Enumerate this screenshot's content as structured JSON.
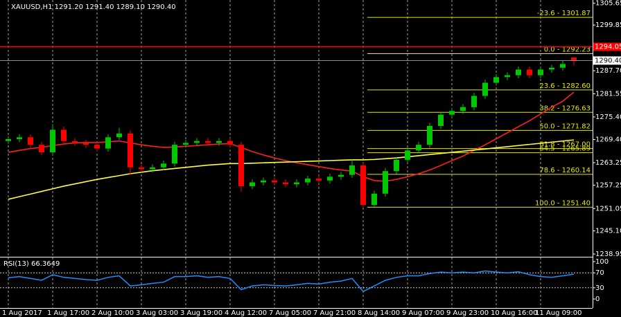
{
  "chart_data": {
    "type": "candlestick",
    "title": "XAUUSD,H1  1291.20 1291.40 1289.10 1290.40",
    "up_color": "#00c800",
    "down_color": "#ff0000",
    "categories": [
      "1 Aug 2017",
      null,
      null,
      null,
      "1 Aug 17:00",
      null,
      null,
      null,
      "2 Aug 10:00",
      null,
      null,
      null,
      "3 Aug 03:00",
      null,
      null,
      null,
      "3 Aug 19:00",
      null,
      null,
      null,
      "4 Aug 12:00",
      null,
      null,
      null,
      "7 Aug 05:00",
      null,
      null,
      null,
      "7 Aug 21:00",
      null,
      null,
      null,
      "8 Aug 14:00",
      null,
      null,
      null,
      "9 Aug 07:00",
      null,
      null,
      null,
      "9 Aug 23:00",
      null,
      null,
      null,
      "10 Aug 16:00",
      null,
      null,
      null,
      "11 Aug 09:00",
      null,
      null,
      null
    ],
    "open": [
      1269,
      1269.5,
      1270,
      1268,
      1266,
      1272,
      1269,
      1268.5,
      1268,
      1267,
      1270,
      1271,
      1262,
      1261.5,
      1262,
      1263,
      1268,
      1268.5,
      1269,
      1268.5,
      1269,
      1268,
      1257,
      1258,
      1258.5,
      1258,
      1257.5,
      1258,
      1259,
      1258.5,
      1259.5,
      1260,
      1262.5,
      1252,
      1255,
      1261,
      1264,
      1266.5,
      1268,
      1273,
      1276,
      1277,
      1278,
      1281,
      1284.5,
      1286,
      1286.5,
      1288,
      1286.5,
      1288,
      1288.5,
      1291.2
    ],
    "high": [
      1270.3,
      1270.8,
      1270.8,
      1268.8,
      1273.5,
      1272.8,
      1269.8,
      1269.3,
      1268.8,
      1270.8,
      1272.5,
      1271.8,
      1262.8,
      1262.8,
      1263.8,
      1268.8,
      1269.3,
      1269.8,
      1269.8,
      1269.8,
      1269.8,
      1268.8,
      1258.8,
      1259.3,
      1259.3,
      1258.8,
      1258.8,
      1259.8,
      1259.8,
      1260.3,
      1260.8,
      1264,
      1263.3,
      1255.8,
      1261.8,
      1264.8,
      1267.3,
      1268.8,
      1273.8,
      1276.8,
      1277.8,
      1278.8,
      1281.8,
      1285.3,
      1286.8,
      1287.3,
      1288.8,
      1288.8,
      1288.8,
      1289.3,
      1290.3,
      1291.4
    ],
    "low": [
      1268.2,
      1268.7,
      1267.2,
      1265.2,
      1265.2,
      1268.2,
      1267.7,
      1267.2,
      1266.2,
      1266.2,
      1269.2,
      1260,
      1260.7,
      1260.7,
      1261.2,
      1262.2,
      1267.2,
      1267.7,
      1267.7,
      1267.7,
      1267.2,
      1255.5,
      1256.2,
      1257.2,
      1257.2,
      1256.7,
      1256.7,
      1257.2,
      1257.7,
      1257.7,
      1258.7,
      1259.2,
      1251.4,
      1251.2,
      1254.2,
      1260.2,
      1263.2,
      1265.7,
      1267.2,
      1272.2,
      1275.2,
      1276.2,
      1277.2,
      1280.2,
      1283.7,
      1285.2,
      1285.7,
      1285.7,
      1285.7,
      1287.2,
      1287.7,
      1289.1
    ],
    "close": [
      1269.5,
      1270,
      1268,
      1266,
      1272,
      1269,
      1268.5,
      1268,
      1267,
      1270,
      1271,
      1262,
      1261.5,
      1262,
      1263,
      1268,
      1268.5,
      1269,
      1268.5,
      1269,
      1268,
      1257,
      1258,
      1258.5,
      1258,
      1257.5,
      1258,
      1259,
      1258.5,
      1259.5,
      1260,
      1262.5,
      1252,
      1255,
      1261,
      1264,
      1266.5,
      1268,
      1273,
      1276,
      1277,
      1278,
      1281,
      1284.5,
      1286,
      1286.5,
      1288,
      1286.5,
      1288,
      1288.5,
      1289.5,
      1290.4
    ],
    "series": [
      {
        "color": "#ff2020",
        "values": [
          1266,
          1266.5,
          1267,
          1267.3,
          1267.8,
          1268.2,
          1268.5,
          1268.6,
          1268.6,
          1268.8,
          1269,
          1268.5,
          1268,
          1267.6,
          1267.3,
          1267.4,
          1267.6,
          1267.8,
          1268,
          1268.2,
          1268.3,
          1267.3,
          1266.2,
          1265.3,
          1264.5,
          1263.8,
          1263.2,
          1262.7,
          1262.2,
          1261.7,
          1261.3,
          1261,
          1259.5,
          1258.5,
          1258.3,
          1258.8,
          1259.5,
          1260.3,
          1261.3,
          1262.5,
          1263.8,
          1265,
          1266.5,
          1268,
          1269.6,
          1271.2,
          1272.8,
          1274.4,
          1276.2,
          1278,
          1279.6,
          1282
        ]
      },
      {
        "color": "#ffff40",
        "values": [
          1253.5,
          1254.2,
          1254.9,
          1255.6,
          1256.3,
          1257,
          1257.6,
          1258.2,
          1258.8,
          1259.3,
          1259.8,
          1260.3,
          1260.7,
          1261.1,
          1261.4,
          1261.7,
          1262,
          1262.3,
          1262.6,
          1262.8,
          1263,
          1263,
          1263.1,
          1263.2,
          1263.3,
          1263.4,
          1263.5,
          1263.6,
          1263.7,
          1263.8,
          1263.9,
          1264,
          1264,
          1264.1,
          1264.3,
          1264.5,
          1264.8,
          1265.1,
          1265.4,
          1265.7,
          1266,
          1266.3,
          1266.6,
          1266.9,
          1267.2,
          1267.5,
          1267.8,
          1268.1,
          1268.4,
          1268.7,
          1269,
          1269.3
        ]
      }
    ],
    "ylim": [
      1238.4,
      1306.5
    ],
    "yticks": [
      {
        "value": 1305.65,
        "label": "1305.65"
      },
      {
        "value": 1299.85,
        "label": "1299.85"
      },
      {
        "value": 1287.7,
        "label": "1287.70"
      },
      {
        "value": 1281.55,
        "label": "1281.55"
      },
      {
        "value": 1275.4,
        "label": "1275.40"
      },
      {
        "value": 1269.4,
        "label": "1269.40"
      },
      {
        "value": 1263.25,
        "label": "1263.25"
      },
      {
        "value": 1257.25,
        "label": "1257.25"
      },
      {
        "value": 1251.05,
        "label": "1251.05"
      },
      {
        "value": 1245.1,
        "label": "1245.10"
      },
      {
        "value": 1238.95,
        "label": "1238.95"
      }
    ],
    "fib_color": "#e8e800",
    "fib_levels": [
      {
        "price": 1301.87,
        "label": "-23.6 - 1301.87"
      },
      {
        "price": 1292.23,
        "label": "0.0 - 1292.23"
      },
      {
        "price": 1282.6,
        "label": "23.6 - 1282.60"
      },
      {
        "price": 1276.63,
        "label": "38.2 - 1276.63"
      },
      {
        "price": 1271.82,
        "label": "50.0 - 1271.82"
      },
      {
        "price": 1267.0,
        "label": "61.8 - 1267.00"
      },
      {
        "price": 1265.89,
        "label": "64.5 - 1265.89"
      },
      {
        "price": 1260.14,
        "label": "78.6 - 1260.14"
      },
      {
        "price": 1251.4,
        "label": "100.0 - 1251.40"
      }
    ],
    "level_line": {
      "price": 1294.05,
      "label": "1294.05",
      "color": "#ff0000"
    },
    "bid_line": {
      "price": 1290.4,
      "label": "1290.40",
      "color": "#8090a0"
    },
    "rsi": {
      "title": "RSI(13) 66.3649",
      "color": "#1e90ff",
      "ylim": [
        0,
        100
      ],
      "yticks": [
        100,
        70,
        30,
        0
      ],
      "levels": [
        70,
        30
      ],
      "values": [
        57,
        60,
        55,
        50,
        65,
        58,
        55,
        52,
        50,
        58,
        62,
        35,
        38,
        42,
        45,
        60,
        60,
        62,
        58,
        60,
        55,
        25,
        35,
        38,
        36,
        35,
        38,
        42,
        40,
        45,
        48,
        55,
        20,
        35,
        50,
        58,
        62,
        62,
        68,
        72,
        70,
        72,
        70,
        75,
        72,
        70,
        73,
        65,
        60,
        58,
        62,
        66.3649
      ]
    }
  }
}
